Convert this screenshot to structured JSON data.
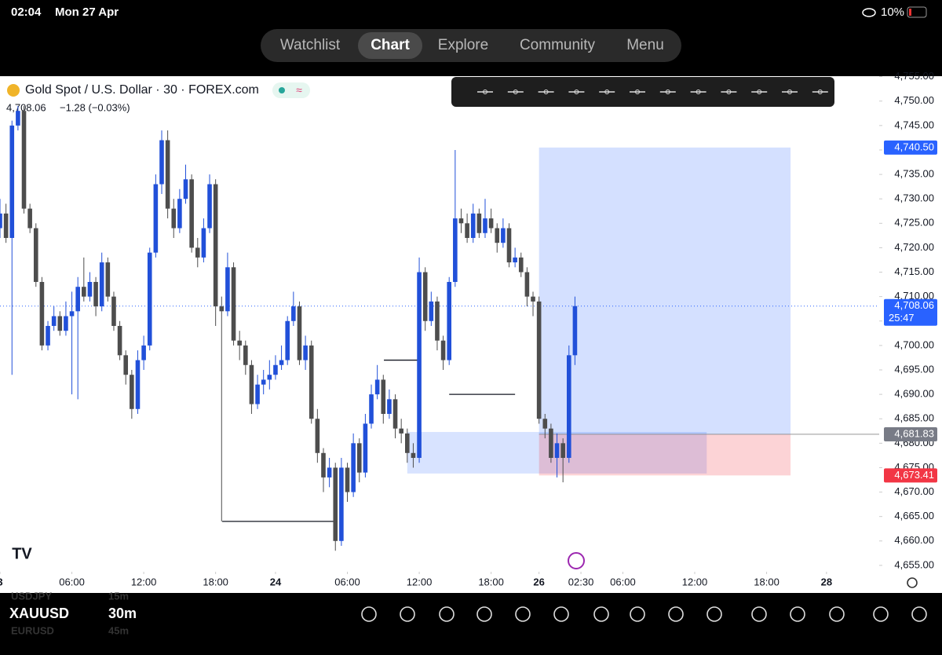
{
  "status_bar": {
    "time": "02:04",
    "date": "Mon 27 Apr",
    "battery": "10%"
  },
  "nav": {
    "tabs": [
      "Watchlist",
      "Chart",
      "Explore",
      "Community",
      "Menu"
    ],
    "active": 1
  },
  "chart_data": {
    "type": "candlestick",
    "title": "Gold Spot / U.S. Dollar · 30 · FOREX.com",
    "price_label": "4,708.06",
    "change_label": "−1.28 (−0.03%)",
    "up_color": "#2150d9",
    "down_color": "#4d4d4d",
    "open": [
      4724,
      4727,
      4722,
      4745,
      4748,
      4728,
      4724,
      4713,
      4700,
      4704,
      4706,
      4703,
      4706,
      4707,
      4712,
      4710,
      4713,
      4708,
      4717,
      4710,
      4704,
      4698,
      4694,
      4687,
      4697,
      4700,
      4719,
      4733,
      4742,
      4728,
      4724,
      4730,
      4734,
      4720,
      4718,
      4724,
      4733,
      4708,
      4707,
      4716,
      4701,
      4700,
      4696,
      4688,
      4692,
      4693,
      4694,
      4696,
      4697,
      4705,
      4708,
      4697,
      4700,
      4685,
      4678,
      4673,
      4675,
      4660,
      4675,
      4670,
      4680,
      4674,
      4684,
      4690,
      4693,
      4686,
      4689,
      4683,
      4682,
      4678,
      4677,
      4715,
      4705,
      4709,
      4701,
      4697,
      4713,
      4726,
      4725,
      4722,
      4727,
      4723,
      4726,
      4724,
      4721,
      4724,
      4717,
      4718,
      4715,
      4710,
      4709,
      4685,
      4683,
      4677,
      4680,
      4677,
      4698
    ],
    "high": [
      4730,
      4729,
      4746,
      4749,
      4749,
      4729,
      4725,
      4714,
      4705,
      4708,
      4707,
      4709,
      4711,
      4714,
      4718,
      4715,
      4714,
      4719,
      4718,
      4711,
      4705,
      4699,
      4695,
      4699,
      4702,
      4720,
      4735,
      4744,
      4744,
      4730,
      4732,
      4737,
      4735,
      4722,
      4726,
      4735,
      4734,
      4710,
      4719,
      4717,
      4703,
      4701,
      4697,
      4694,
      4695,
      4697,
      4698,
      4700,
      4706,
      4711,
      4709,
      4702,
      4701,
      4687,
      4679,
      4677,
      4676,
      4677,
      4676,
      4682,
      4681,
      4686,
      4692,
      4696,
      4694,
      4691,
      4690,
      4685,
      4683,
      4680,
      4718,
      4716,
      4711,
      4710,
      4702,
      4714,
      4740,
      4728,
      4727,
      4729,
      4728,
      4730,
      4728,
      4725,
      4726,
      4725,
      4720,
      4719,
      4716,
      4711,
      4710,
      4686,
      4684,
      4682,
      4681,
      4700,
      4710
    ],
    "low": [
      4722,
      4721,
      4694,
      4744,
      4727,
      4723,
      4712,
      4699,
      4699,
      4703,
      4702,
      4702,
      4690,
      4689,
      4709,
      4709,
      4706,
      4707,
      4709,
      4703,
      4697,
      4692,
      4685,
      4686,
      4695,
      4699,
      4718,
      4731,
      4726,
      4722,
      4723,
      4729,
      4719,
      4716,
      4717,
      4723,
      4704,
      4664,
      4706,
      4700,
      4697,
      4694,
      4686,
      4687,
      4690,
      4691,
      4693,
      4695,
      4696,
      4704,
      4696,
      4695,
      4684,
      4676,
      4670,
      4671,
      4658,
      4659,
      4668,
      4669,
      4672,
      4673,
      4683,
      4689,
      4684,
      4685,
      4681,
      4680,
      4676,
      4675,
      4676,
      4703,
      4704,
      4699,
      4695,
      4696,
      4712,
      4723,
      4721,
      4721,
      4722,
      4722,
      4723,
      4719,
      4720,
      4716,
      4716,
      4714,
      4708,
      4706,
      4684,
      4681,
      4676,
      4673,
      4672,
      4676,
      4696
    ],
    "close": [
      4727,
      4722,
      4745,
      4748,
      4728,
      4724,
      4713,
      4700,
      4704,
      4706,
      4703,
      4706,
      4707,
      4712,
      4710,
      4713,
      4708,
      4717,
      4710,
      4704,
      4698,
      4694,
      4687,
      4697,
      4700,
      4719,
      4733,
      4742,
      4728,
      4724,
      4730,
      4734,
      4720,
      4718,
      4724,
      4733,
      4708,
      4707,
      4716,
      4701,
      4700,
      4696,
      4688,
      4692,
      4693,
      4694,
      4696,
      4697,
      4705,
      4708,
      4697,
      4700,
      4685,
      4678,
      4673,
      4675,
      4660,
      4675,
      4670,
      4680,
      4674,
      4684,
      4690,
      4693,
      4686,
      4689,
      4683,
      4682,
      4678,
      4677,
      4715,
      4705,
      4709,
      4701,
      4697,
      4713,
      4726,
      4725,
      4722,
      4727,
      4723,
      4726,
      4724,
      4721,
      4724,
      4717,
      4718,
      4715,
      4710,
      4709,
      4685,
      4683,
      4677,
      4680,
      4677,
      4698,
      4708.06
    ],
    "xlim": [
      0,
      146.8
    ],
    "ylim": [
      4653.7,
      4755.1
    ],
    "xticks": [
      {
        "value": 0,
        "label": "3"
      },
      {
        "value": 12,
        "label": "06:00"
      },
      {
        "value": 24,
        "label": "12:00"
      },
      {
        "value": 36,
        "label": "18:00"
      },
      {
        "value": 46,
        "label": "24"
      },
      {
        "value": 58,
        "label": "06:00"
      },
      {
        "value": 70,
        "label": "12:00"
      },
      {
        "value": 82,
        "label": "18:00"
      },
      {
        "value": 90,
        "label": "26"
      },
      {
        "value": 97,
        "label": "02:30"
      },
      {
        "value": 104,
        "label": "06:00"
      },
      {
        "value": 116,
        "label": "12:00"
      },
      {
        "value": 128,
        "label": "18:00"
      },
      {
        "value": 138,
        "label": "28"
      }
    ],
    "yticks": [
      {
        "value": 4655,
        "label": "4,655.00"
      },
      {
        "value": 4660,
        "label": "4,660.00"
      },
      {
        "value": 4665,
        "label": "4,665.00"
      },
      {
        "value": 4670,
        "label": "4,670.00"
      },
      {
        "value": 4675,
        "label": "4,675.00"
      },
      {
        "value": 4680,
        "label": "4,680.00"
      },
      {
        "value": 4685,
        "label": "4,685.00"
      },
      {
        "value": 4690,
        "label": "4,690.00"
      },
      {
        "value": 4695,
        "label": "4,695.00"
      },
      {
        "value": 4700,
        "label": "4,700.00"
      },
      {
        "value": 4705,
        "label": "4,705.00"
      },
      {
        "value": 4710,
        "label": "4,710.00"
      },
      {
        "value": 4715,
        "label": "4,715.00"
      },
      {
        "value": 4720,
        "label": "4,720.00"
      },
      {
        "value": 4725,
        "label": "4,725.00"
      },
      {
        "value": 4730,
        "label": "4,730.00"
      },
      {
        "value": 4735,
        "label": "4,735.00"
      },
      {
        "value": 4740,
        "label": "4,740.00"
      },
      {
        "value": 4745,
        "label": "4,745.00"
      },
      {
        "value": 4750,
        "label": "4,750.00"
      },
      {
        "value": 4755,
        "label": "4,755.00"
      }
    ],
    "levels": [
      {
        "value": 4664,
        "x": [
          37.1,
          55.7
        ]
      },
      {
        "value": 4697,
        "x": [
          64.1,
          69.9
        ]
      },
      {
        "value": 4690,
        "x": [
          75,
          86
        ]
      }
    ],
    "zone": {
      "y": [
        4673.8,
        4682.3
      ],
      "x": [
        68,
        118
      ],
      "color": "rgba(41,98,255,0.18)"
    },
    "position": {
      "x": [
        90,
        132
      ],
      "target": {
        "value": 4740.5,
        "label": "4,740.50"
      },
      "entry": {
        "value": 4681.83,
        "label": "4,681.83"
      },
      "stop": {
        "value": 4673.41,
        "label": "4,673.41"
      }
    },
    "last": {
      "value": 4708.06,
      "label": "4,708.06",
      "countdown": "25:47"
    }
  },
  "bottom_bar": {
    "symbol": "XAUUSD",
    "interval": "30m",
    "prev_symbol": "USDJPY",
    "prev_interval": "15m",
    "next_symbol": "EURUSD",
    "next_interval": "45m"
  }
}
